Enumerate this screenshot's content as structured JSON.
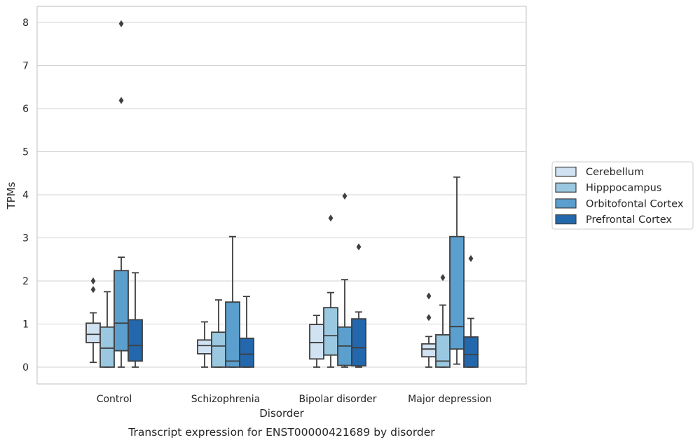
{
  "chart_data": {
    "type": "box",
    "title": "Transcript expression for ENST00000421689 by disorder",
    "xlabel": "Disorder",
    "ylabel": "TPMs",
    "ylim": [
      -0.4,
      8.4
    ],
    "yticks": [
      0,
      1,
      2,
      3,
      4,
      5,
      6,
      7,
      8
    ],
    "grid": "horizontal",
    "legend_position": "right",
    "categories": [
      "Control",
      "Schizophrenia",
      "Bipolar disorder",
      "Major depression"
    ],
    "series": [
      {
        "name": "Cerebellum",
        "color": "#d1e2f2",
        "boxes": [
          {
            "whisker_low": 0.11,
            "q1": 0.57,
            "median": 0.76,
            "q3": 1.02,
            "whisker_high": 1.26,
            "outliers": [
              1.8,
              2.0
            ]
          },
          {
            "whisker_low": 0.0,
            "q1": 0.31,
            "median": 0.5,
            "q3": 0.63,
            "whisker_high": 1.05,
            "outliers": []
          },
          {
            "whisker_low": 0.0,
            "q1": 0.19,
            "median": 0.57,
            "q3": 0.99,
            "whisker_high": 1.2,
            "outliers": []
          },
          {
            "whisker_low": 0.0,
            "q1": 0.24,
            "median": 0.42,
            "q3": 0.54,
            "whisker_high": 0.71,
            "outliers": [
              1.15,
              1.65
            ]
          }
        ]
      },
      {
        "name": "Hipppocampus",
        "color": "#9ac8e0",
        "boxes": [
          {
            "whisker_low": 0.0,
            "q1": 0.0,
            "median": 0.44,
            "q3": 0.93,
            "whisker_high": 1.75,
            "outliers": []
          },
          {
            "whisker_low": 0.0,
            "q1": 0.0,
            "median": 0.49,
            "q3": 0.81,
            "whisker_high": 1.56,
            "outliers": []
          },
          {
            "whisker_low": 0.0,
            "q1": 0.28,
            "median": 0.73,
            "q3": 1.38,
            "whisker_high": 1.73,
            "outliers": [
              3.46
            ]
          },
          {
            "whisker_low": 0.0,
            "q1": 0.0,
            "median": 0.14,
            "q3": 0.75,
            "whisker_high": 1.44,
            "outliers": [
              2.08
            ]
          }
        ]
      },
      {
        "name": "Orbitofontal Cortex",
        "color": "#5a9fcd",
        "boxes": [
          {
            "whisker_low": 0.0,
            "q1": 0.38,
            "median": 1.02,
            "q3": 2.24,
            "whisker_high": 2.55,
            "outliers": [
              6.19,
              7.97
            ]
          },
          {
            "whisker_low": 0.0,
            "q1": 0.0,
            "median": 0.14,
            "q3": 1.51,
            "whisker_high": 3.03,
            "outliers": []
          },
          {
            "whisker_low": 0.0,
            "q1": 0.04,
            "median": 0.49,
            "q3": 0.93,
            "whisker_high": 2.03,
            "outliers": [
              3.97
            ]
          },
          {
            "whisker_low": 0.07,
            "q1": 0.42,
            "median": 0.94,
            "q3": 3.03,
            "whisker_high": 4.41,
            "outliers": []
          }
        ]
      },
      {
        "name": "Prefrontal Cortex",
        "color": "#2367ac",
        "boxes": [
          {
            "whisker_low": 0.0,
            "q1": 0.14,
            "median": 0.5,
            "q3": 1.1,
            "whisker_high": 2.19,
            "outliers": []
          },
          {
            "whisker_low": 0.0,
            "q1": 0.0,
            "median": 0.3,
            "q3": 0.67,
            "whisker_high": 1.64,
            "outliers": []
          },
          {
            "whisker_low": 0.0,
            "q1": 0.03,
            "median": 0.45,
            "q3": 1.12,
            "whisker_high": 1.28,
            "outliers": [
              2.79
            ]
          },
          {
            "whisker_low": 0.0,
            "q1": 0.0,
            "median": 0.29,
            "q3": 0.7,
            "whisker_high": 1.13,
            "outliers": [
              2.52
            ]
          }
        ]
      }
    ]
  }
}
